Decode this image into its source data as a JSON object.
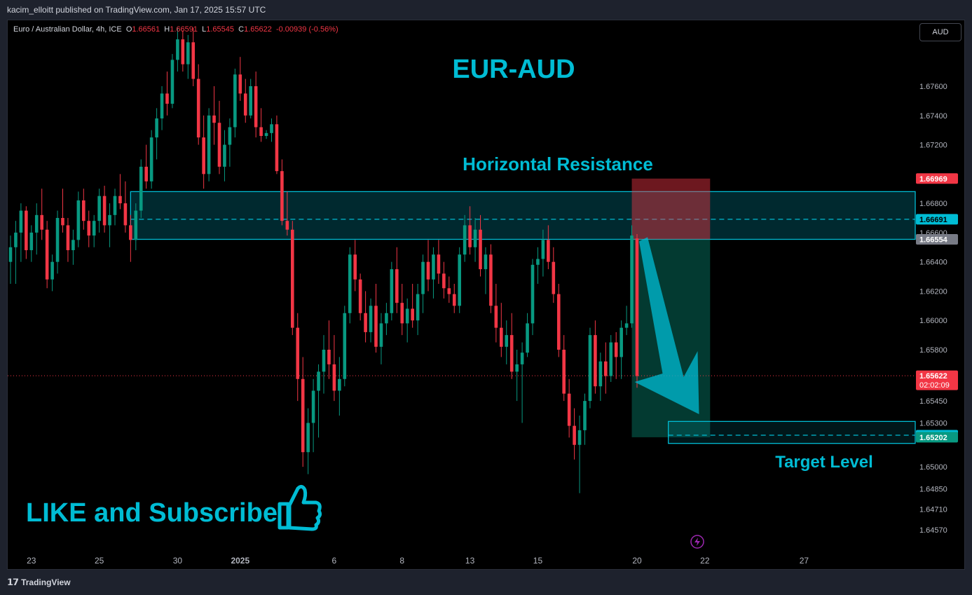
{
  "publisher": "kacim_elloitt published on TradingView.com, Jan 17, 2025 15:57 UTC",
  "brand": "TradingView",
  "legend": {
    "symbol": "Euro / Australian Dollar, 4h, ICE",
    "o_label": "O",
    "o": "1.66561",
    "h_label": "H",
    "h": "1.66591",
    "l_label": "L",
    "l": "1.65545",
    "c_label": "C",
    "c": "1.65622",
    "change": "-0.00939 (-0.56%)"
  },
  "currency": "AUD",
  "colors": {
    "up": "#089981",
    "down": "#f23645",
    "annotation": "#00bcd4",
    "background": "#000000"
  },
  "chart_data": {
    "type": "candlestick",
    "title": "EUR-AUD",
    "interval": "4h",
    "ylim": [
      1.6445,
      1.6805
    ],
    "y_ticks": [
      "1.67600",
      "1.67400",
      "1.67200",
      "1.66800",
      "1.66600",
      "1.66400",
      "1.66200",
      "1.66000",
      "1.65800",
      "1.65450",
      "1.65300",
      "1.65000",
      "1.64850",
      "1.64710",
      "1.64570"
    ],
    "x_ticks": [
      {
        "label": "23",
        "i": 4
      },
      {
        "label": "25",
        "i": 17
      },
      {
        "label": "30",
        "i": 32
      },
      {
        "label": "2025",
        "i": 44,
        "bold": true
      },
      {
        "label": "6",
        "i": 62
      },
      {
        "label": "8",
        "i": 75
      },
      {
        "label": "13",
        "i": 88
      },
      {
        "label": "15",
        "i": 101
      },
      {
        "label": "20",
        "i": 120
      },
      {
        "label": "22",
        "i": 133
      },
      {
        "label": "27",
        "i": 152
      }
    ],
    "price_labels": [
      {
        "value": "1.66969",
        "price": 1.66969,
        "bg": "#f23645",
        "color": "#ffffff"
      },
      {
        "value": "1.66691",
        "price": 1.66691,
        "bg": "#00bcd4",
        "color": "#000000"
      },
      {
        "value": "1.66554",
        "price": 1.66554,
        "bg": "#787b86",
        "color": "#ffffff"
      },
      {
        "value": "1.65622",
        "price": 1.65622,
        "bg": "#f23645",
        "color": "#ffffff",
        "sub": "02:02:09"
      },
      {
        "value": "1.65216",
        "price": 1.65216,
        "bg": "#00bcd4",
        "color": "#000000"
      },
      {
        "value": "1.65202",
        "price": 1.65202,
        "bg": "#089981",
        "color": "#ffffff"
      }
    ],
    "candles": [
      [
        1.664,
        1.6658,
        1.6625,
        1.665
      ],
      [
        1.665,
        1.6668,
        1.6625,
        1.666
      ],
      [
        1.666,
        1.668,
        1.664,
        1.6675
      ],
      [
        1.6675,
        1.6678,
        1.6642,
        1.6648
      ],
      [
        1.6648,
        1.6665,
        1.664,
        1.666
      ],
      [
        1.666,
        1.668,
        1.6645,
        1.6672
      ],
      [
        1.6672,
        1.669,
        1.6655,
        1.6662
      ],
      [
        1.6662,
        1.6668,
        1.6622,
        1.6628
      ],
      [
        1.6628,
        1.6645,
        1.662,
        1.664
      ],
      [
        1.664,
        1.6675,
        1.6632,
        1.667
      ],
      [
        1.667,
        1.669,
        1.666,
        1.6665
      ],
      [
        1.6665,
        1.667,
        1.664,
        1.6648
      ],
      [
        1.6648,
        1.6662,
        1.6638,
        1.6655
      ],
      [
        1.6655,
        1.6688,
        1.665,
        1.6682
      ],
      [
        1.6682,
        1.669,
        1.6662,
        1.6668
      ],
      [
        1.6668,
        1.6675,
        1.665,
        1.6658
      ],
      [
        1.6658,
        1.6672,
        1.665,
        1.6668
      ],
      [
        1.6668,
        1.669,
        1.666,
        1.6685
      ],
      [
        1.6685,
        1.6692,
        1.666,
        1.6665
      ],
      [
        1.6665,
        1.668,
        1.665,
        1.6672
      ],
      [
        1.6672,
        1.669,
        1.6665,
        1.6685
      ],
      [
        1.6685,
        1.67,
        1.6676,
        1.668
      ],
      [
        1.668,
        1.6695,
        1.666,
        1.6665
      ],
      [
        1.6665,
        1.6672,
        1.664,
        1.6655
      ],
      [
        1.6655,
        1.668,
        1.6648,
        1.6675
      ],
      [
        1.6675,
        1.671,
        1.667,
        1.6705
      ],
      [
        1.6705,
        1.672,
        1.669,
        1.6695
      ],
      [
        1.6695,
        1.673,
        1.669,
        1.6725
      ],
      [
        1.6725,
        1.6745,
        1.671,
        1.6738
      ],
      [
        1.6738,
        1.676,
        1.673,
        1.6755
      ],
      [
        1.6755,
        1.677,
        1.674,
        1.6748
      ],
      [
        1.6748,
        1.6782,
        1.6745,
        1.6778
      ],
      [
        1.6778,
        1.68,
        1.677,
        1.6792
      ],
      [
        1.6792,
        1.6798,
        1.677,
        1.6775
      ],
      [
        1.6775,
        1.6795,
        1.6765,
        1.679
      ],
      [
        1.679,
        1.68,
        1.676,
        1.6765
      ],
      [
        1.6765,
        1.6775,
        1.672,
        1.6725
      ],
      [
        1.6725,
        1.674,
        1.669,
        1.67
      ],
      [
        1.67,
        1.6745,
        1.6695,
        1.674
      ],
      [
        1.674,
        1.676,
        1.672,
        1.6735
      ],
      [
        1.6735,
        1.675,
        1.67,
        1.6705
      ],
      [
        1.6705,
        1.673,
        1.6695,
        1.672
      ],
      [
        1.672,
        1.6738,
        1.6705,
        1.6732
      ],
      [
        1.6732,
        1.6772,
        1.6725,
        1.6768
      ],
      [
        1.6768,
        1.678,
        1.675,
        1.6755
      ],
      [
        1.6755,
        1.6765,
        1.6735,
        1.674
      ],
      [
        1.674,
        1.6765,
        1.6738,
        1.676
      ],
      [
        1.676,
        1.677,
        1.6725,
        1.6732
      ],
      [
        1.6732,
        1.6745,
        1.6722,
        1.6726
      ],
      [
        1.6726,
        1.673,
        1.6724,
        1.6728
      ],
      [
        1.6728,
        1.6738,
        1.6722,
        1.6734
      ],
      [
        1.6734,
        1.674,
        1.67,
        1.6702
      ],
      [
        1.6702,
        1.671,
        1.6665,
        1.6668
      ],
      [
        1.6668,
        1.6688,
        1.6658,
        1.6662
      ],
      [
        1.6662,
        1.6668,
        1.659,
        1.6595
      ],
      [
        1.6595,
        1.6605,
        1.6545,
        1.656
      ],
      [
        1.656,
        1.6575,
        1.65,
        1.651
      ],
      [
        1.651,
        1.654,
        1.6495,
        1.653
      ],
      [
        1.653,
        1.656,
        1.651,
        1.6552
      ],
      [
        1.6552,
        1.657,
        1.652,
        1.6565
      ],
      [
        1.6565,
        1.659,
        1.655,
        1.658
      ],
      [
        1.658,
        1.66,
        1.656,
        1.657
      ],
      [
        1.657,
        1.659,
        1.6545,
        1.6552
      ],
      [
        1.6552,
        1.6575,
        1.6535,
        1.656
      ],
      [
        1.656,
        1.661,
        1.6555,
        1.6605
      ],
      [
        1.6605,
        1.665,
        1.6598,
        1.6645
      ],
      [
        1.6645,
        1.6655,
        1.662,
        1.6628
      ],
      [
        1.6628,
        1.6632,
        1.66,
        1.6605
      ],
      [
        1.6605,
        1.662,
        1.6585,
        1.6592
      ],
      [
        1.6592,
        1.6615,
        1.6585,
        1.661
      ],
      [
        1.661,
        1.6625,
        1.6578,
        1.6582
      ],
      [
        1.6582,
        1.6605,
        1.657,
        1.6598
      ],
      [
        1.6598,
        1.6612,
        1.659,
        1.6605
      ],
      [
        1.6605,
        1.664,
        1.66,
        1.6635
      ],
      [
        1.6635,
        1.665,
        1.6605,
        1.6612
      ],
      [
        1.6612,
        1.6625,
        1.659,
        1.6598
      ],
      [
        1.6598,
        1.6615,
        1.6585,
        1.6608
      ],
      [
        1.6608,
        1.6625,
        1.6595,
        1.66
      ],
      [
        1.66,
        1.6625,
        1.659,
        1.6618
      ],
      [
        1.6618,
        1.6645,
        1.6605,
        1.664
      ],
      [
        1.664,
        1.6655,
        1.662,
        1.6628
      ],
      [
        1.6628,
        1.665,
        1.6615,
        1.6645
      ],
      [
        1.6645,
        1.6655,
        1.6625,
        1.6632
      ],
      [
        1.6632,
        1.664,
        1.6615,
        1.6622
      ],
      [
        1.6622,
        1.663,
        1.6612,
        1.6618
      ],
      [
        1.6618,
        1.6625,
        1.6605,
        1.661
      ],
      [
        1.661,
        1.665,
        1.6605,
        1.6645
      ],
      [
        1.6645,
        1.6672,
        1.664,
        1.6665
      ],
      [
        1.6665,
        1.6678,
        1.6645,
        1.665
      ],
      [
        1.665,
        1.667,
        1.664,
        1.6662
      ],
      [
        1.6662,
        1.6672,
        1.663,
        1.6635
      ],
      [
        1.6635,
        1.665,
        1.6618,
        1.6645
      ],
      [
        1.6645,
        1.6652,
        1.6605,
        1.661
      ],
      [
        1.661,
        1.6625,
        1.6585,
        1.6595
      ],
      [
        1.6595,
        1.6612,
        1.6575,
        1.6582
      ],
      [
        1.6582,
        1.66,
        1.657,
        1.659
      ],
      [
        1.659,
        1.6605,
        1.656,
        1.6565
      ],
      [
        1.6565,
        1.658,
        1.6545,
        1.657
      ],
      [
        1.657,
        1.6585,
        1.653,
        1.6578
      ],
      [
        1.6578,
        1.6605,
        1.6575,
        1.6598
      ],
      [
        1.6598,
        1.6642,
        1.659,
        1.6638
      ],
      [
        1.6638,
        1.665,
        1.6625,
        1.6642
      ],
      [
        1.6642,
        1.6662,
        1.663,
        1.6655
      ],
      [
        1.6655,
        1.6665,
        1.6635,
        1.664
      ],
      [
        1.664,
        1.665,
        1.6612,
        1.6618
      ],
      [
        1.6618,
        1.6625,
        1.6575,
        1.658
      ],
      [
        1.658,
        1.659,
        1.6545,
        1.655
      ],
      [
        1.655,
        1.656,
        1.652,
        1.6528
      ],
      [
        1.6528,
        1.654,
        1.6505,
        1.6515
      ],
      [
        1.6515,
        1.6535,
        1.6482,
        1.6525
      ],
      [
        1.6525,
        1.655,
        1.6515,
        1.6545
      ],
      [
        1.6545,
        1.6595,
        1.654,
        1.659
      ],
      [
        1.659,
        1.66,
        1.655,
        1.6555
      ],
      [
        1.6555,
        1.6578,
        1.6545,
        1.6572
      ],
      [
        1.6572,
        1.6585,
        1.655,
        1.6562
      ],
      [
        1.6562,
        1.659,
        1.6558,
        1.6585
      ],
      [
        1.6585,
        1.6592,
        1.656,
        1.6575
      ],
      [
        1.6575,
        1.66,
        1.656,
        1.6595
      ],
      [
        1.6595,
        1.661,
        1.659,
        1.6598
      ],
      [
        1.6598,
        1.6665,
        1.6595,
        1.6658
      ],
      [
        1.6656,
        1.6659,
        1.6554,
        1.6562
      ]
    ],
    "resistance_zone": {
      "top": 1.6688,
      "bottom": 1.66554,
      "mid": 1.66691,
      "from_i": 23,
      "label": "Horizontal Resistance"
    },
    "short_position": {
      "entry": 1.66554,
      "stop": 1.66969,
      "target": 1.65202,
      "from_i": 119,
      "to_i": 134
    },
    "target_zone": {
      "top": 1.6531,
      "bottom": 1.6516,
      "mid": 1.65216,
      "from_i": 126,
      "label": "Target Level"
    },
    "current_price": 1.65622
  },
  "annotations": {
    "like_subscribe": "LIKE and Subscribe"
  },
  "icons": {
    "thumbs_up": "thumbs-up-icon",
    "flash": "lightning-icon",
    "tv_logo": "tradingview-logo-icon"
  }
}
